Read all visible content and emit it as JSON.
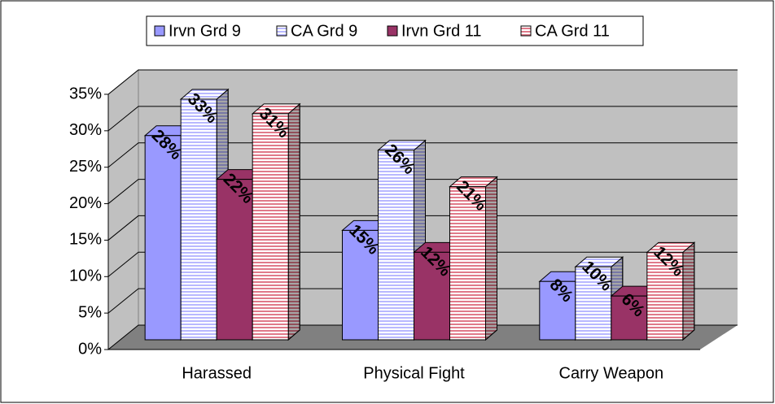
{
  "chart_data": {
    "type": "bar3d",
    "categories": [
      "Harassed",
      "Physical Fight",
      "Carry Weapon"
    ],
    "series": [
      {
        "name": "Irvn Grd 9",
        "color": "#9999ff",
        "fill_style": "solid",
        "values": [
          28,
          15,
          8
        ],
        "value_labels": [
          "28%",
          "15%",
          "8%"
        ]
      },
      {
        "name": "CA Grd 9",
        "color": "#b8b8ff",
        "fill_style": "striped",
        "values": [
          33,
          26,
          10
        ],
        "value_labels": [
          "33%",
          "26%",
          "10%"
        ]
      },
      {
        "name": "Irvn Grd 11",
        "color": "#993366",
        "fill_style": "solid",
        "values": [
          22,
          12,
          6
        ],
        "value_labels": [
          "22%",
          "12%",
          "6%"
        ]
      },
      {
        "name": "CA Grd 11",
        "color": "#e07a8a",
        "fill_style": "striped",
        "values": [
          31,
          21,
          12
        ],
        "value_labels": [
          "31%",
          "21%",
          "12%"
        ]
      }
    ],
    "ylim": [
      0,
      35
    ],
    "yticks": [
      {
        "value": 0,
        "label": "0%"
      },
      {
        "value": 5,
        "label": "5%"
      },
      {
        "value": 10,
        "label": "10%"
      },
      {
        "value": 15,
        "label": "15%"
      },
      {
        "value": 20,
        "label": "20%"
      },
      {
        "value": 25,
        "label": "25%"
      },
      {
        "value": 30,
        "label": "30%"
      },
      {
        "value": 35,
        "label": "35%"
      }
    ],
    "grid": true,
    "legend": "top"
  }
}
